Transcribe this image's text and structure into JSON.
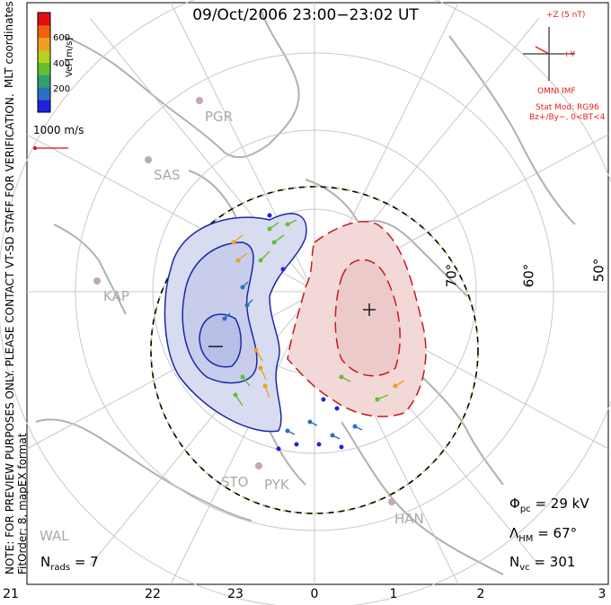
{
  "title": "09/Oct/2006 23:00−23:02 UT",
  "colorbar": {
    "label": "Vel [m/s]",
    "ticks": [
      "600",
      "400",
      "200"
    ],
    "colors": [
      "#2020e0",
      "#2a70c0",
      "#30a070",
      "#60c030",
      "#b8d020",
      "#f0a020",
      "#f06010",
      "#e01010"
    ]
  },
  "mlt_coordinates_label": "MLT coordinates",
  "reference_vector_label": "1000 m/s",
  "note_line1": "NOTE: FOR PREVIEW PURPOSES ONLY. PLEASE CONTACT VT-SD STAFF FOR VERIFICATION.",
  "note_line2": "FitOrder: 8, mapEX format",
  "imf": {
    "z_label": "+Z (5 nT)",
    "y_label": "+Y",
    "source": "OMNI IMF",
    "stat_mod": "Stat Mod: RG96",
    "condition": "Bz+/By−, 0<BT<4"
  },
  "latitude_labels": [
    "70°",
    "60°",
    "50°"
  ],
  "stations": [
    "PGR",
    "SAS",
    "KAP",
    "STO",
    "PYK",
    "HAN",
    "WAL"
  ],
  "stats": {
    "phi_pc": {
      "symbol": "Φ",
      "sub": "pc",
      "value": "= 29 kV"
    },
    "lambda_hm": {
      "symbol": "Λ",
      "sub": "HM",
      "value": "= 67°"
    },
    "n_vc": {
      "symbol": "N",
      "sub": "vc",
      "value": "= 301"
    },
    "n_rads": {
      "symbol": "N",
      "sub": "rads",
      "value": "= 7"
    }
  },
  "mlt_ticks": [
    "21",
    "22",
    "23",
    "0",
    "1",
    "2",
    "3"
  ],
  "colors": {
    "negative_cell": "#1a28a8",
    "positive_cell": "#c41c1c",
    "negative_fill": "#d8dcf0",
    "positive_fill": "#f3d8d8",
    "coastline": "#b0b0b0",
    "grid": "#c8c8c8",
    "boundary_green": "#7cc84a",
    "imf_red": "#e0201c"
  }
}
